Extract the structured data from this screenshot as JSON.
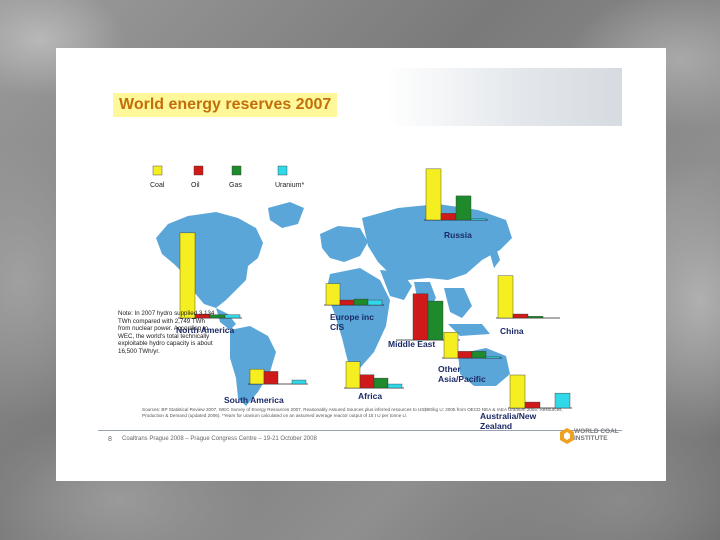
{
  "title": "World energy reserves 2007",
  "legend": [
    {
      "label": "Coal",
      "color": "#f5ee20"
    },
    {
      "label": "Oil",
      "color": "#d01a1a"
    },
    {
      "label": "Gas",
      "color": "#1f8a2c"
    },
    {
      "label": "Uranium*",
      "color": "#30d8e8"
    }
  ],
  "note": "Note: In 2007 hydro supplied 3,134 TWh compared with 2,749 TWh from nuclear power. According to WEC, the world's total technically exploitable hydro capacity is about 16,500 TWh/yr.",
  "sources": "Sources: BP Statistical Review 2007, WEC Survey of Energy Resources 2007, Reasonably Assured Sources plus inferred resources to US$80/kg U: 2005 from OECD NEA & IAEA Uranium 2005: Resources, Production & Demand (updated 2006). *Years for uranium calculated on an assumed average reactor output of 15 t U per tonne U.",
  "page_number": "8",
  "conference": "Coaltrans Prague 2008 – Prague Congress Centre – 19-21 October 2008",
  "logo_text": [
    "WORLD COAL",
    "INSTITUTE"
  ],
  "chart_data": {
    "type": "bar",
    "title": "World energy reserves 2007",
    "series_names": [
      "Coal",
      "Oil",
      "Gas",
      "Uranium*"
    ],
    "colors": [
      "#f5ee20",
      "#d01a1a",
      "#1f8a2c",
      "#30d8e8"
    ],
    "regions": [
      {
        "name": "North America",
        "values": [
          258,
          12,
          10,
          10
        ]
      },
      {
        "name": "Russia",
        "values": [
          155,
          20,
          73,
          5
        ]
      },
      {
        "name": "Europe inc CIS",
        "values": [
          65,
          15,
          18,
          15
        ]
      },
      {
        "name": "Middle East",
        "values": [
          0,
          140,
          118,
          0
        ]
      },
      {
        "name": "China",
        "values": [
          128,
          12,
          5,
          0
        ]
      },
      {
        "name": "South America",
        "values": [
          45,
          38,
          0,
          12
        ]
      },
      {
        "name": "Africa",
        "values": [
          80,
          40,
          30,
          12
        ]
      },
      {
        "name": "Other Asia/Pacific",
        "values": [
          78,
          20,
          20,
          5
        ]
      },
      {
        "name": "Australia/New Zealand",
        "values": [
          100,
          18,
          0,
          45
        ]
      }
    ]
  }
}
